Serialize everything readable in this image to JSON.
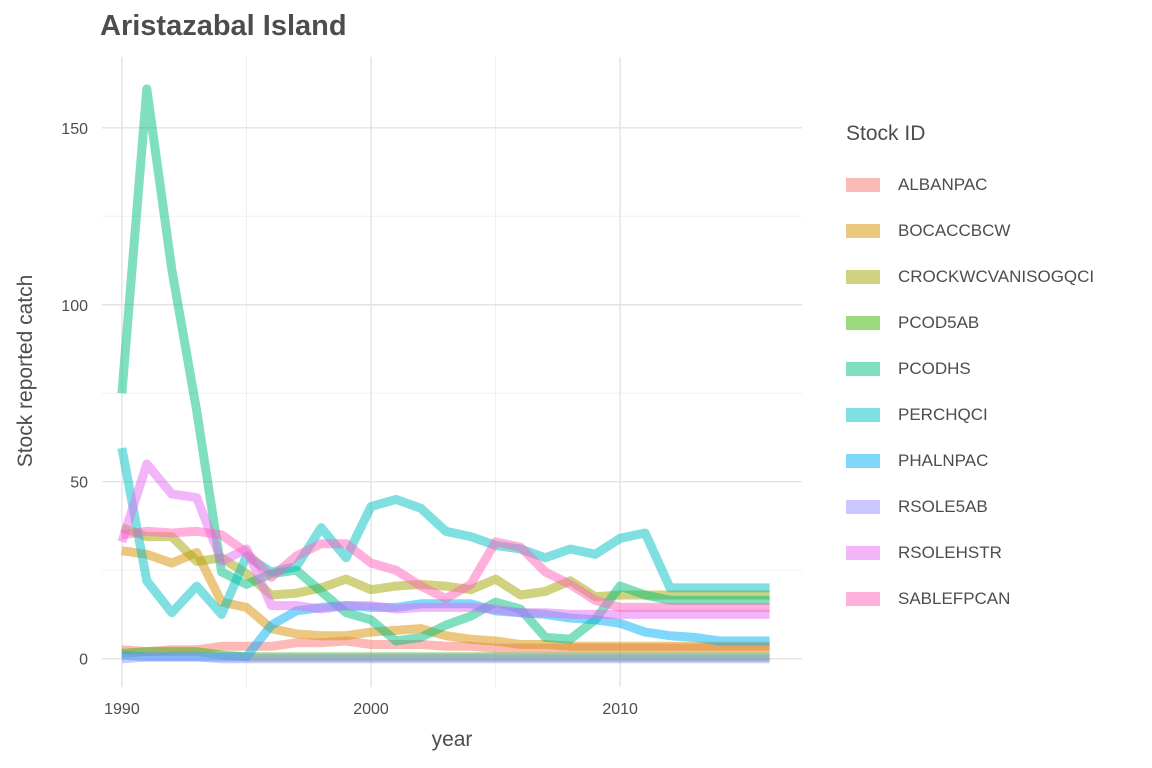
{
  "chart_data": {
    "type": "line",
    "title": "Aristazabal Island",
    "xlabel": "year",
    "ylabel": "Stock reported catch",
    "xlim": [
      1989.2,
      2017.3
    ],
    "ylim": [
      -8,
      170
    ],
    "x_ticks": [
      1990,
      2000,
      2010
    ],
    "y_ticks": [
      0,
      50,
      100,
      150
    ],
    "grid": true,
    "legend_title": "Stock ID",
    "legend_position": "right",
    "x": [
      1990,
      1991,
      1992,
      1993,
      1994,
      1995,
      1996,
      1997,
      1998,
      1999,
      2000,
      2001,
      2002,
      2003,
      2004,
      2005,
      2006,
      2007,
      2008,
      2009,
      2010,
      2011,
      2012,
      2013,
      2014,
      2015,
      2016
    ],
    "series": [
      {
        "name": "ALBANPAC",
        "color": "#F8766D",
        "values": [
          2.5,
          2,
          2.5,
          2.5,
          3.5,
          3.5,
          3.5,
          4.5,
          4.5,
          5,
          4,
          4,
          4,
          3.5,
          3.5,
          3,
          3,
          3,
          3,
          3,
          3,
          3,
          3,
          3,
          3,
          3,
          3
        ]
      },
      {
        "name": "BOCACCBCW",
        "color": "#D89000",
        "values": [
          30.5,
          29.5,
          27,
          30,
          16,
          14.5,
          8.5,
          7,
          6.5,
          6.5,
          7.5,
          8,
          8.5,
          6.5,
          5.5,
          5,
          4,
          4,
          3.5,
          3.5,
          3.5,
          3.5,
          3.5,
          3.5,
          3.5,
          3.5,
          3.5
        ]
      },
      {
        "name": "CROCKWCVANISOGQCI",
        "color": "#A3A500",
        "values": [
          37,
          34.5,
          34.5,
          27.5,
          28.5,
          24,
          18,
          18.5,
          20,
          22.5,
          19.5,
          20.5,
          21,
          20.5,
          19.5,
          22.5,
          18,
          19,
          22,
          17.5,
          18,
          18,
          18,
          18,
          18,
          18,
          18
        ]
      },
      {
        "name": "PCOD5AB",
        "color": "#39B600",
        "values": [
          1.5,
          2,
          2,
          2,
          1,
          0.5,
          0.5,
          0.5,
          0.5,
          0.5,
          0.5,
          0.5,
          0.5,
          0.5,
          0.5,
          0.5,
          0.5,
          0.5,
          0.5,
          0.5,
          0.5,
          0.5,
          0.5,
          0.5,
          0.5,
          0.5,
          0.5
        ]
      },
      {
        "name": "PCODHS",
        "color": "#00BF7D",
        "values": [
          75,
          161,
          110,
          70,
          24.5,
          21,
          24,
          25,
          19,
          13,
          11,
          5,
          6,
          9.5,
          12,
          16,
          14,
          6,
          5.5,
          11,
          20.5,
          18,
          16.5,
          16.5,
          16.5,
          16.5,
          16.5
        ]
      },
      {
        "name": "PERCHQCI",
        "color": "#00BFC4",
        "values": [
          59.5,
          22,
          13,
          20.5,
          12.5,
          29,
          24.5,
          26,
          37,
          28.5,
          43,
          45,
          42.5,
          36,
          34.5,
          32,
          31,
          28.5,
          31,
          29.5,
          34,
          35.5,
          20,
          20,
          20,
          20,
          20
        ]
      },
      {
        "name": "PHALNPAC",
        "color": "#00B0F6",
        "values": [
          1,
          0.5,
          0.5,
          0.5,
          0.5,
          0.5,
          9.5,
          13.5,
          14.5,
          15,
          14.5,
          14.5,
          15.5,
          15.5,
          15.5,
          13.5,
          13,
          12.5,
          11.5,
          11,
          10,
          7.5,
          6.5,
          6,
          5,
          5,
          5
        ]
      },
      {
        "name": "RSOLE5AB",
        "color": "#9590FF",
        "values": [
          0,
          0.5,
          0.5,
          0.5,
          0,
          0,
          0,
          0,
          0,
          0,
          0,
          0,
          0,
          0,
          0,
          0,
          0,
          0,
          0,
          0,
          0,
          0,
          0,
          0,
          0,
          0,
          0
        ]
      },
      {
        "name": "RSOLEHSTR",
        "color": "#E76BF3",
        "values": [
          33,
          55,
          46.5,
          45.5,
          27.5,
          31,
          15,
          15,
          14,
          15,
          15,
          14,
          14.5,
          14.5,
          14.5,
          14,
          13,
          13,
          12.5,
          12.5,
          12.5,
          12.5,
          12.5,
          12.5,
          12.5,
          12.5,
          12.5
        ]
      },
      {
        "name": "SABLEFPCAN",
        "color": "#FF62BC",
        "values": [
          35,
          36,
          35.5,
          36,
          35,
          30,
          23,
          29,
          32.5,
          32.5,
          27,
          25,
          20.5,
          17,
          21,
          33,
          31.5,
          24.5,
          21,
          16.5,
          14.5,
          14.5,
          14.5,
          14.5,
          14.5,
          14.5,
          14.5
        ]
      }
    ]
  }
}
